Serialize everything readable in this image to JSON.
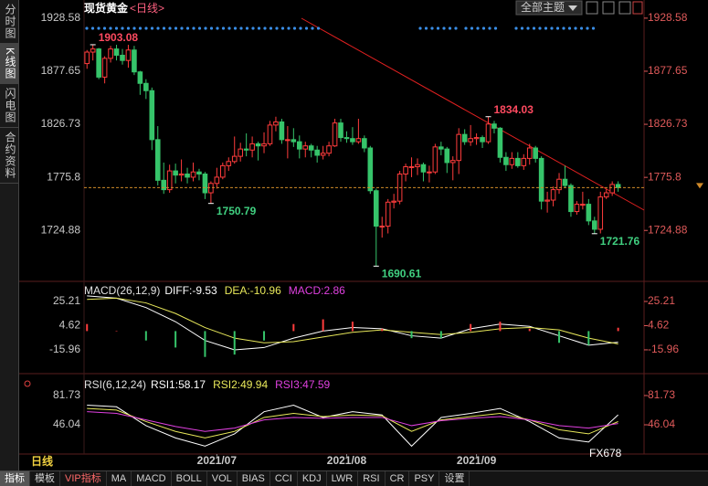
{
  "ui": {
    "sidebar_tabs": [
      "分时图",
      "K线图",
      "闪电图",
      "合约资料"
    ],
    "theme_button": "全部主题",
    "period": "日线",
    "watermark": "FX678",
    "indicator_tabs": [
      "指标",
      "模板",
      "VIP指标",
      "MA",
      "MACD",
      "BOLL",
      "VOL",
      "BIAS",
      "CCI",
      "KDJ",
      "LWR",
      "RSI",
      "CR",
      "PSY",
      "设置"
    ]
  },
  "chart_data": [
    {
      "type": "candlestick",
      "title": "现货黄金",
      "subtitle": "<日线>",
      "ylim": [
        1676,
        1946
      ],
      "yticks": [
        1928.58,
        1877.65,
        1826.73,
        1775.8,
        1724.88
      ],
      "xticks": [
        {
          "value": 22,
          "label": "2021/07"
        },
        {
          "value": 44,
          "label": "2021/08"
        },
        {
          "value": 66,
          "label": "2021/09"
        }
      ],
      "up_color": "#ff3c3c",
      "down_color": "#36c46a",
      "candles": [
        [
          1885,
          1898,
          1880,
          1896
        ],
        [
          1896,
          1903.08,
          1888,
          1899
        ],
        [
          1899,
          1900,
          1870,
          1872
        ],
        [
          1872,
          1892,
          1866,
          1890
        ],
        [
          1890,
          1902,
          1886,
          1899
        ],
        [
          1899,
          1903,
          1888,
          1893
        ],
        [
          1893,
          1899,
          1884,
          1888
        ],
        [
          1888,
          1903,
          1881,
          1898
        ],
        [
          1898,
          1902,
          1874,
          1877
        ],
        [
          1877,
          1878,
          1855,
          1866
        ],
        [
          1866,
          1870,
          1851,
          1859
        ],
        [
          1859,
          1862,
          1802,
          1812
        ],
        [
          1812,
          1825,
          1768,
          1773
        ],
        [
          1773,
          1790,
          1760,
          1764
        ],
        [
          1764,
          1788,
          1761,
          1782
        ],
        [
          1782,
          1789,
          1770,
          1778
        ],
        [
          1778,
          1793,
          1772,
          1779
        ],
        [
          1779,
          1785,
          1770,
          1776
        ],
        [
          1776,
          1790,
          1772,
          1781
        ],
        [
          1781,
          1784,
          1773,
          1779
        ],
        [
          1779,
          1781,
          1755,
          1761
        ],
        [
          1761,
          1772,
          1750.79,
          1770
        ],
        [
          1770,
          1785,
          1765,
          1776
        ],
        [
          1776,
          1790,
          1774,
          1787
        ],
        [
          1787,
          1795,
          1782,
          1791
        ],
        [
          1791,
          1815,
          1789,
          1796
        ],
        [
          1796,
          1809,
          1791,
          1803
        ],
        [
          1803,
          1818,
          1796,
          1802
        ],
        [
          1802,
          1815,
          1795,
          1808
        ],
        [
          1808,
          1810,
          1792,
          1806
        ],
        [
          1806,
          1819,
          1799,
          1808
        ],
        [
          1808,
          1830,
          1806,
          1826
        ],
        [
          1826,
          1834,
          1820,
          1829
        ],
        [
          1829,
          1832,
          1808,
          1812
        ],
        [
          1812,
          1825,
          1794,
          1812
        ],
        [
          1812,
          1823,
          1805,
          1810
        ],
        [
          1810,
          1816,
          1794,
          1803
        ],
        [
          1803,
          1810,
          1795,
          1806
        ],
        [
          1806,
          1808,
          1795,
          1802
        ],
        [
          1802,
          1806,
          1790,
          1797
        ],
        [
          1797,
          1806,
          1793,
          1799
        ],
        [
          1799,
          1810,
          1796,
          1806
        ],
        [
          1806,
          1832,
          1805,
          1828
        ],
        [
          1828,
          1832,
          1810,
          1814
        ],
        [
          1814,
          1820,
          1809,
          1813
        ],
        [
          1813,
          1824,
          1807,
          1810
        ],
        [
          1810,
          1832,
          1808,
          1813
        ],
        [
          1813,
          1816,
          1800,
          1804
        ],
        [
          1804,
          1806,
          1760,
          1763
        ],
        [
          1763,
          1765,
          1690.61,
          1729
        ],
        [
          1729,
          1738,
          1718,
          1729
        ],
        [
          1729,
          1755,
          1722,
          1752
        ],
        [
          1752,
          1760,
          1746,
          1753
        ],
        [
          1753,
          1782,
          1750,
          1779
        ],
        [
          1779,
          1789,
          1772,
          1786
        ],
        [
          1786,
          1795,
          1776,
          1786
        ],
        [
          1786,
          1794,
          1778,
          1788
        ],
        [
          1788,
          1790,
          1772,
          1781
        ],
        [
          1781,
          1787,
          1771,
          1781
        ],
        [
          1781,
          1808,
          1779,
          1805
        ],
        [
          1805,
          1810,
          1797,
          1803
        ],
        [
          1803,
          1805,
          1780,
          1790
        ],
        [
          1790,
          1796,
          1773,
          1792
        ],
        [
          1792,
          1823,
          1779,
          1817
        ],
        [
          1817,
          1822,
          1807,
          1810
        ],
        [
          1810,
          1826,
          1806,
          1813
        ],
        [
          1813,
          1818,
          1807,
          1814
        ],
        [
          1814,
          1816,
          1804,
          1810
        ],
        [
          1810,
          1834.03,
          1808,
          1827
        ],
        [
          1827,
          1830,
          1818,
          1823
        ],
        [
          1823,
          1824,
          1790,
          1795
        ],
        [
          1795,
          1800,
          1782,
          1788
        ],
        [
          1788,
          1800,
          1784,
          1794
        ],
        [
          1794,
          1800,
          1785,
          1787
        ],
        [
          1787,
          1798,
          1783,
          1794
        ],
        [
          1794,
          1808,
          1788,
          1804
        ],
        [
          1804,
          1806,
          1790,
          1794
        ],
        [
          1794,
          1796,
          1745,
          1753
        ],
        [
          1753,
          1762,
          1742,
          1754
        ],
        [
          1754,
          1767,
          1748,
          1764
        ],
        [
          1764,
          1780,
          1760,
          1774
        ],
        [
          1774,
          1787,
          1766,
          1768
        ],
        [
          1768,
          1770,
          1738,
          1743
        ],
        [
          1743,
          1753,
          1740,
          1750
        ],
        [
          1750,
          1762,
          1745,
          1750
        ],
        [
          1750,
          1755,
          1730,
          1734
        ],
        [
          1734,
          1738,
          1721.76,
          1726
        ],
        [
          1726,
          1762,
          1722,
          1757
        ],
        [
          1757,
          1765,
          1755,
          1761
        ],
        [
          1761,
          1772,
          1758,
          1769
        ],
        [
          1769,
          1772,
          1762,
          1766
        ]
      ]
    },
    {
      "type": "macd",
      "title": "MACD(26,12,9)",
      "ylim": [
        -23,
        39.2
      ],
      "yticks": [
        25.21,
        4.62,
        -15.96
      ],
      "x": [
        0,
        5,
        10,
        15,
        20,
        25,
        30,
        35,
        40,
        45,
        50,
        55,
        60,
        65,
        70,
        75,
        80,
        85,
        90
      ],
      "series": [
        {
          "name": "DIFF:",
          "style": "line",
          "color": "#ffffff",
          "values": [
            30,
            28,
            20,
            8,
            -8,
            -16,
            -14,
            -6,
            0,
            3,
            2,
            -4,
            -6,
            2,
            6,
            4,
            -4,
            -12,
            -9.53
          ]
        },
        {
          "name": "DEA:",
          "style": "line",
          "color": "#e8e85a",
          "values": [
            27,
            28,
            24,
            15,
            3,
            -6,
            -10,
            -9,
            -5,
            -1,
            1,
            -1,
            -3,
            -1,
            2,
            3,
            1,
            -6,
            -10.96
          ]
        },
        {
          "name": "MACD:",
          "style": "bar",
          "color": "#e040e0",
          "values": [
            6,
            0,
            -8,
            -14,
            -22,
            -20,
            -8,
            6,
            10,
            8,
            2,
            -6,
            -6,
            6,
            8,
            2,
            -10,
            -12,
            2.86
          ]
        }
      ]
    },
    {
      "type": "line",
      "title": "RSI(6,12,24)",
      "ylim": [
        12.6,
        105.1
      ],
      "yticks": [
        81.73,
        46.04
      ],
      "x": [
        0,
        5,
        10,
        15,
        20,
        25,
        30,
        35,
        40,
        45,
        50,
        55,
        60,
        65,
        70,
        75,
        80,
        85,
        90
      ],
      "series": [
        {
          "name": "RSI1:",
          "color": "#ffffff",
          "values": [
            70,
            68,
            45,
            30,
            20,
            35,
            62,
            70,
            55,
            62,
            58,
            20,
            55,
            60,
            66,
            50,
            30,
            25,
            58.17
          ]
        },
        {
          "name": "RSI2:",
          "color": "#e8e85a",
          "values": [
            66,
            64,
            50,
            38,
            30,
            38,
            55,
            60,
            56,
            58,
            57,
            38,
            52,
            56,
            60,
            52,
            40,
            35,
            49.94
          ]
        },
        {
          "name": "RSI3:",
          "color": "#e040e0",
          "values": [
            62,
            60,
            52,
            44,
            38,
            42,
            52,
            55,
            54,
            55,
            55,
            45,
            51,
            54,
            56,
            52,
            45,
            42,
            47.59
          ]
        }
      ]
    }
  ]
}
